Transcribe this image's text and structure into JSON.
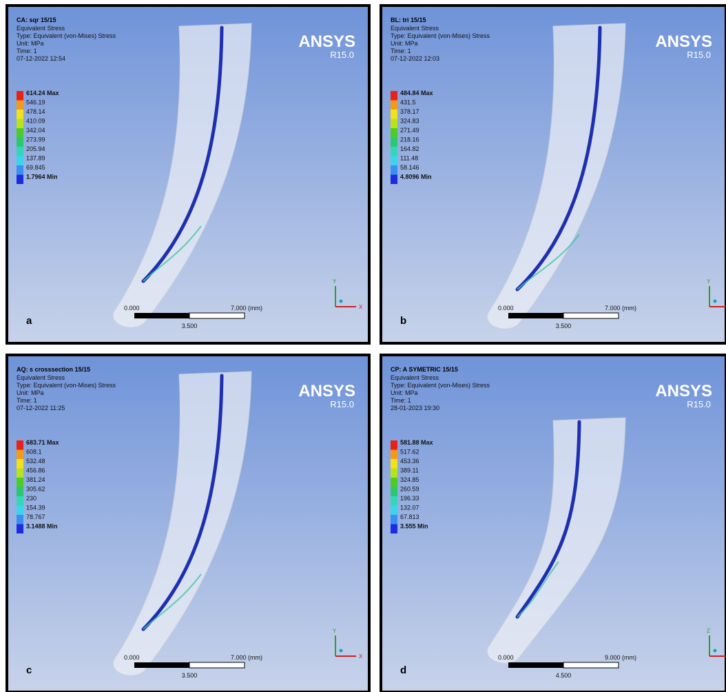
{
  "logo": {
    "name": "ANSYS",
    "version": "R15.0"
  },
  "panels": [
    {
      "label": "a",
      "title": "CA: sqr 15/15",
      "header": [
        "Equivalent Stress",
        "Type: Equivalent (von-Mises) Stress",
        "Unit: MPa",
        "Time: 1",
        "07-12-2022 12:54"
      ],
      "legend": [
        "614.24 Max",
        "546.19",
        "478.14",
        "410.09",
        "342.04",
        "273.99",
        "205.94",
        "137.89",
        "69.845",
        "1.7964 Min"
      ],
      "scale": {
        "start": "0.000",
        "end": "7.000 (mm)",
        "mid": "3.500"
      },
      "axes": [
        "Y",
        "X"
      ]
    },
    {
      "label": "b",
      "title": "BL: tri 15/15",
      "header": [
        "Equivalent Stress",
        "Type: Equivalent (von-Mises) Stress",
        "Unit: MPa",
        "Time: 1",
        "07-12-2022 12:03"
      ],
      "legend": [
        "484.84 Max",
        "431.5",
        "378.17",
        "324.83",
        "271.49",
        "218.16",
        "164.82",
        "111.48",
        "58.146",
        "4.8096 Min"
      ],
      "scale": {
        "start": "0.000",
        "end": "7.000 (mm)",
        "mid": "3.500"
      },
      "axes": [
        "Y"
      ]
    },
    {
      "label": "c",
      "title": "AQ: s crosssection 15/15",
      "header": [
        "Equivalent Stress",
        "Type: Equivalent (von-Mises) Stress",
        "Unit: MPa",
        "Time: 1",
        "07-12-2022 11:25"
      ],
      "legend": [
        "683.71 Max",
        "608.1",
        "532.48",
        "456.86",
        "381.24",
        "305.62",
        "230",
        "154.39",
        "78.767",
        "3.1488 Min"
      ],
      "scale": {
        "start": "0.000",
        "end": "7.000 (mm)",
        "mid": "3.500"
      },
      "axes": [
        "Y",
        "X"
      ]
    },
    {
      "label": "d",
      "title": "CP: A SYMETRIC 15/15",
      "header": [
        "Equivalent Stress",
        "Type: Equivalent (von-Mises) Stress",
        "Unit: MPa",
        "Time: 1",
        "28-01-2023 19:30"
      ],
      "legend": [
        "581.88 Max",
        "517.62",
        "453.36",
        "389.11",
        "324.85",
        "260.59",
        "196.33",
        "132.07",
        "67.813",
        "3.555 Min"
      ],
      "scale": {
        "start": "0.000",
        "end": "9.000 (mm)",
        "mid": "4.500"
      },
      "axes": [
        "Z"
      ]
    }
  ]
}
